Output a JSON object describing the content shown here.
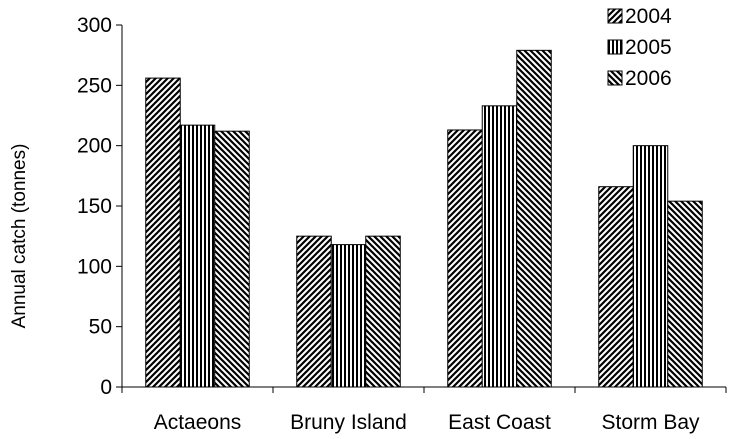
{
  "chart_data": {
    "type": "bar",
    "categories": [
      "Actaeons",
      "Bruny Island",
      "East Coast",
      "Storm Bay"
    ],
    "series": [
      {
        "name": "2004",
        "values": [
          256,
          125,
          213,
          166
        ],
        "pattern": "diagonal-up"
      },
      {
        "name": "2005",
        "values": [
          217,
          118,
          233,
          200
        ],
        "pattern": "vertical"
      },
      {
        "name": "2006",
        "values": [
          212,
          125,
          279,
          154
        ],
        "pattern": "diagonal-down"
      }
    ],
    "ylabel": "Annual catch (tonnes)",
    "xlabel": "",
    "ylim": [
      0,
      300
    ],
    "yticks": [
      0,
      50,
      100,
      150,
      200,
      250,
      300
    ],
    "grid": false,
    "legend": "top-right",
    "colors": {
      "ink": "#000000",
      "background": "#ffffff"
    }
  }
}
